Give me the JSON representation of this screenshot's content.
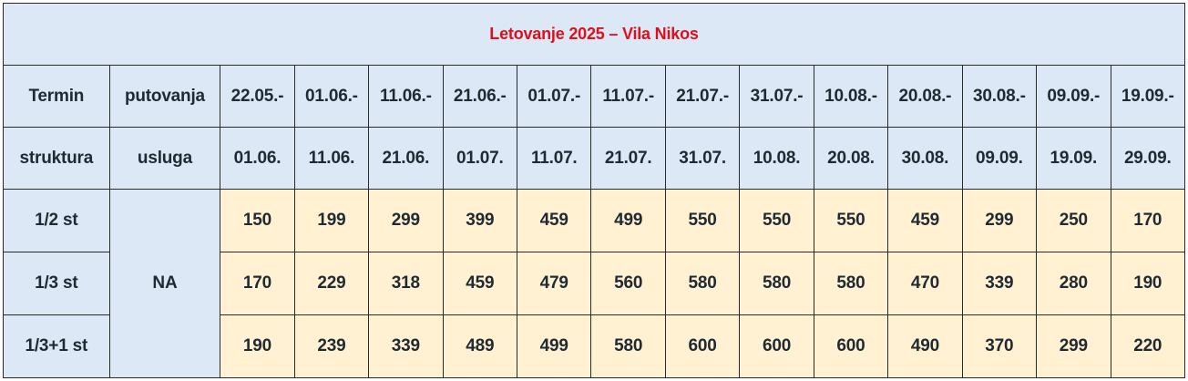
{
  "title": "Letovanje 2025 – Vila Nikos",
  "header": {
    "row1_label1": "Termin",
    "row1_label2": "putovanja",
    "row2_label1": "struktura",
    "row2_label2": "usluga",
    "period_starts": [
      "22.05.-",
      "01.06.-",
      "11.06.-",
      "21.06.-",
      "01.07.-",
      "11.07.-",
      "21.07.-",
      "31.07.-",
      "10.08.-",
      "20.08.-",
      "30.08.-",
      "09.09.-",
      "19.09.-"
    ],
    "period_ends": [
      "01.06.",
      "11.06.",
      "21.06.",
      "01.07.",
      "11.07.",
      "21.07.",
      "31.07.",
      "10.08.",
      "20.08.",
      "30.08.",
      "09.09.",
      "19.09.",
      "29.09."
    ]
  },
  "service": "NA",
  "rows": [
    {
      "structure": "1/2 st",
      "prices": [
        "150",
        "199",
        "299",
        "399",
        "459",
        "499",
        "550",
        "550",
        "550",
        "459",
        "299",
        "250",
        "170"
      ]
    },
    {
      "structure": "1/3 st",
      "prices": [
        "170",
        "229",
        "318",
        "459",
        "479",
        "560",
        "580",
        "580",
        "580",
        "470",
        "339",
        "280",
        "190"
      ]
    },
    {
      "structure": "1/3+1 st",
      "prices": [
        "190",
        "239",
        "339",
        "489",
        "499",
        "580",
        "600",
        "600",
        "600",
        "490",
        "370",
        "299",
        "220"
      ]
    }
  ],
  "colors": {
    "header_bg": "#dce8f5",
    "price_bg": "#fff1d2",
    "title_text": "#e0101a",
    "border": "#2a2a2a"
  }
}
